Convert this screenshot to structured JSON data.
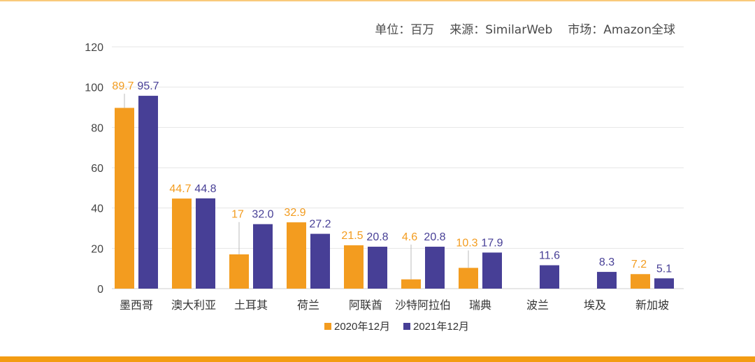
{
  "header": {
    "unit": "单位：百万",
    "source": "来源：SimilarWeb",
    "market": "市场：Amazon全球"
  },
  "colors": {
    "series_2020": "#f39c1f",
    "series_2021": "#473f96",
    "accent_rule": "#f39c12"
  },
  "chart_data": {
    "type": "bar",
    "title": "",
    "xlabel": "",
    "ylabel": "",
    "ylim": [
      0,
      120
    ],
    "yticks": [
      0,
      20,
      40,
      60,
      80,
      100,
      120
    ],
    "grid": true,
    "legend_position": "bottom",
    "categories": [
      "墨西哥",
      "澳大利亚",
      "土耳其",
      "荷兰",
      "阿联酋",
      "沙特阿拉伯",
      "瑞典",
      "波兰",
      "埃及",
      "新加坡"
    ],
    "series": [
      {
        "name": "2020年12月",
        "values": [
          89.7,
          44.7,
          17,
          32.9,
          21.5,
          4.6,
          10.3,
          null,
          null,
          7.2
        ],
        "labels": [
          "89.7",
          "44.7",
          "17",
          "32.9",
          "21.5",
          "4.6",
          "10.3",
          "",
          "",
          "7.2"
        ]
      },
      {
        "name": "2021年12月",
        "values": [
          95.7,
          44.8,
          32.0,
          27.2,
          20.8,
          20.8,
          17.9,
          11.6,
          8.3,
          5.1
        ],
        "labels": [
          "95.7",
          "44.8",
          "32.0",
          "27.2",
          "20.8",
          "20.8",
          "17.9",
          "11.6",
          "8.3",
          "5.1"
        ]
      }
    ]
  }
}
